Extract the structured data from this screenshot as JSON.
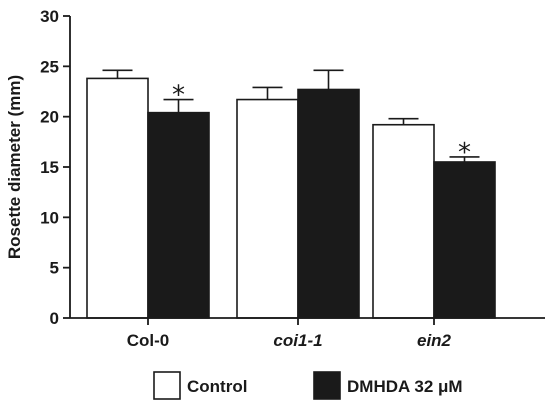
{
  "chart_data": {
    "type": "bar",
    "ylabel": "Rosette diameter (mm)",
    "ylim": [
      0,
      30
    ],
    "yticks": [
      0,
      5,
      10,
      15,
      20,
      25,
      30
    ],
    "categories": [
      "Col-0",
      "coi1-1",
      "ein2"
    ],
    "category_italic": [
      false,
      true,
      true
    ],
    "series": [
      {
        "name": "Control",
        "values": [
          23.8,
          21.7,
          19.2
        ],
        "errors": [
          0.8,
          1.2,
          0.6
        ],
        "color": "#ffffff"
      },
      {
        "name": "DMHDA 32 μM",
        "values": [
          20.4,
          22.7,
          15.5
        ],
        "errors": [
          1.3,
          1.9,
          0.5
        ],
        "color": "#1a1a1a"
      }
    ],
    "annotations": [
      {
        "category": "Col-0",
        "series": "DMHDA 32 μM",
        "text": "*"
      },
      {
        "category": "ein2",
        "series": "DMHDA 32 μM",
        "text": "*"
      }
    ],
    "legend": "bottom",
    "grid": false
  }
}
